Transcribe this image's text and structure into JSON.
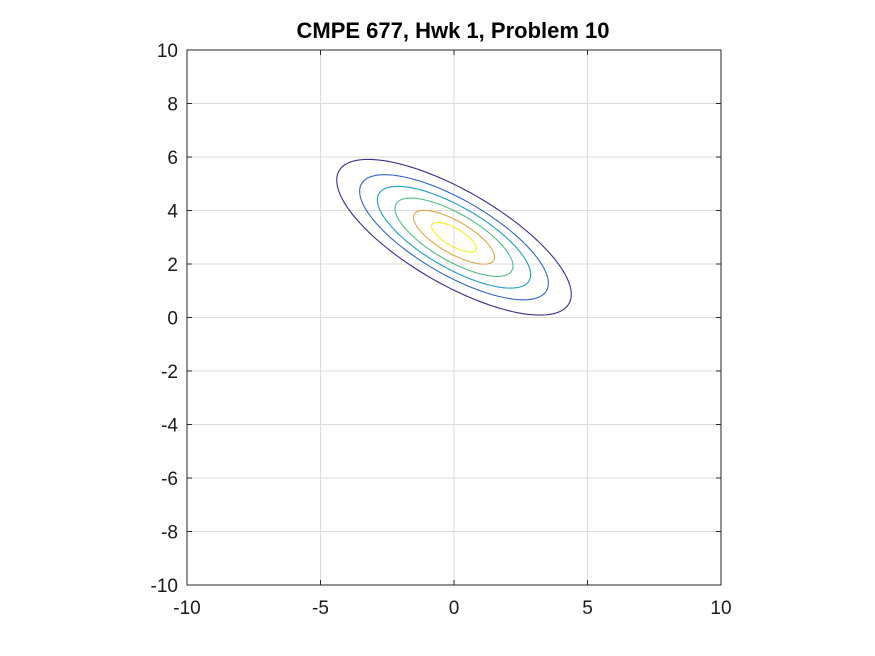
{
  "chart_data": {
    "type": "contour",
    "title": "CMPE 677, Hwk 1, Problem 10",
    "xlabel": "",
    "ylabel": "",
    "xlim": [
      -10,
      10
    ],
    "ylim": [
      -10,
      10
    ],
    "x_ticks": [
      -10,
      -5,
      0,
      5,
      10
    ],
    "y_ticks": [
      -10,
      -8,
      -6,
      -4,
      -2,
      0,
      2,
      4,
      6,
      8,
      10
    ],
    "x_tick_labels": [
      "-10",
      "-5",
      "0",
      "5",
      "10"
    ],
    "y_tick_labels": [
      "-10",
      "-8",
      "-6",
      "-4",
      "-2",
      "0",
      "2",
      "4",
      "6",
      "8",
      "10"
    ],
    "grid": true,
    "center": [
      0,
      3
    ],
    "contours": [
      {
        "level": 1,
        "color": "#3d2b8f",
        "semi_major": 4.97,
        "semi_minor": 1.75,
        "angle_deg": -30
      },
      {
        "level": 2,
        "color": "#2f64c8",
        "semi_major": 4.0,
        "semi_minor": 1.4,
        "angle_deg": -30
      },
      {
        "level": 3,
        "color": "#1e9fc2",
        "semi_major": 3.25,
        "semi_minor": 1.14,
        "angle_deg": -30
      },
      {
        "level": 4,
        "color": "#4fbf86",
        "semi_major": 2.5,
        "semi_minor": 0.88,
        "angle_deg": -30
      },
      {
        "level": 5,
        "color": "#e0a845",
        "semi_major": 1.72,
        "semi_minor": 0.6,
        "angle_deg": -30
      },
      {
        "level": 6,
        "color": "#f4ef22",
        "semi_major": 0.95,
        "semi_minor": 0.33,
        "angle_deg": -30
      }
    ]
  }
}
